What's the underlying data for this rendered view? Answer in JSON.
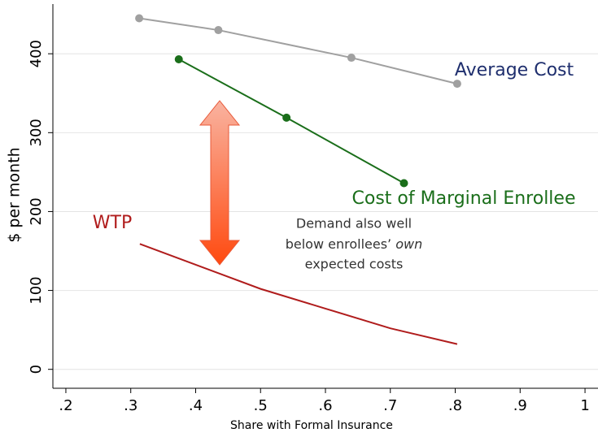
{
  "chart_data": {
    "type": "line",
    "x_label": "Share with Formal Insurance",
    "y_label": "$ per month",
    "xlim": [
      0.18,
      1.02
    ],
    "ylim": [
      -24,
      463
    ],
    "xticks": [
      {
        "value": 0.2,
        "label": ".2"
      },
      {
        "value": 0.3,
        "label": ".3"
      },
      {
        "value": 0.4,
        "label": ".4"
      },
      {
        "value": 0.5,
        "label": ".5"
      },
      {
        "value": 0.6,
        "label": ".6"
      },
      {
        "value": 0.7,
        "label": ".7"
      },
      {
        "value": 0.8,
        "label": ".8"
      },
      {
        "value": 0.9,
        "label": ".9"
      },
      1
    ],
    "yticks": [
      0,
      100,
      200,
      300,
      400
    ],
    "grid": true,
    "series": [
      {
        "name": "Average Cost",
        "color": "#a0a0a0",
        "label_color": "#1f2f6e",
        "markers": true,
        "x": [
          0.313,
          0.435,
          0.64,
          0.803
        ],
        "values": [
          445,
          430,
          395,
          362
        ]
      },
      {
        "name": "Cost of Marginal Enrollee",
        "color": "#1a6e1a",
        "label_color": "#1a6e1a",
        "markers": true,
        "x": [
          0.374,
          0.54,
          0.721
        ],
        "values": [
          393,
          319,
          236
        ]
      },
      {
        "name": "WTP",
        "color": "#b01c1c",
        "label_color": "#b01c1c",
        "markers": false,
        "x": [
          0.314,
          0.438,
          0.5,
          0.6,
          0.7,
          0.803
        ],
        "values": [
          159,
          121,
          102,
          77,
          52,
          32
        ]
      }
    ],
    "annotation": [
      "Demand also well",
      "below enrollees’ ",
      "own",
      "expected costs"
    ]
  }
}
